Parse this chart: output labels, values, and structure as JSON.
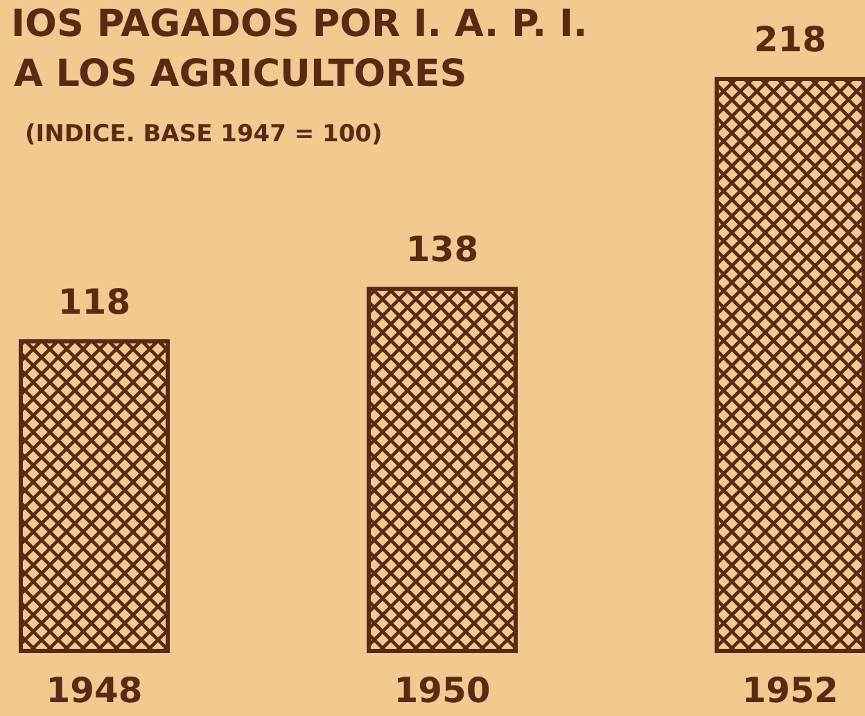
{
  "chart_data": {
    "type": "bar",
    "title": "IOS PAGADOS POR I. A. P. I.\nA LOS AGRICULTORES",
    "subtitle": "(INDICE. BASE 1947 = 100)",
    "categories": [
      "1948",
      "1950",
      "1952"
    ],
    "values": [
      118,
      138,
      218
    ],
    "color": "#5a2a14",
    "data_labels": true,
    "tick_labels": "x"
  }
}
